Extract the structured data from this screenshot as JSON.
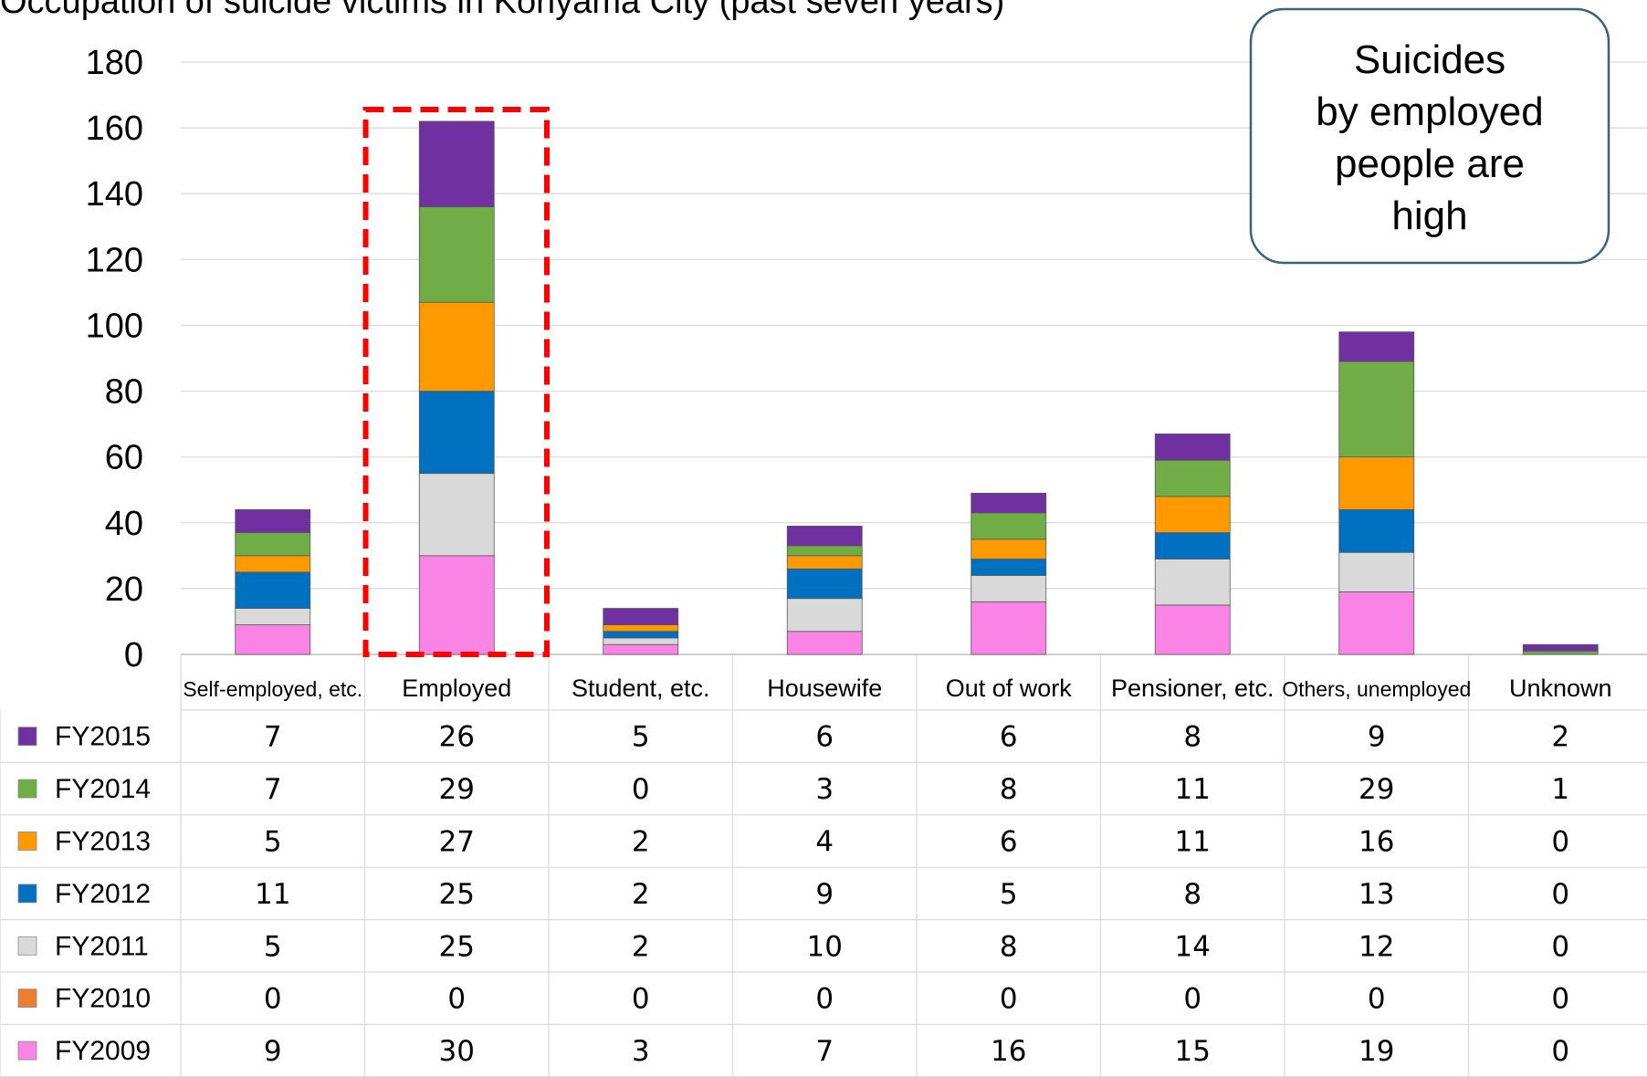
{
  "chart_data": {
    "type": "bar",
    "stacked": true,
    "title": "Occupation of suicide victims in Koriyama City (past seven years)",
    "ylim": [
      0,
      180
    ],
    "yticks": [
      0,
      20,
      40,
      60,
      80,
      100,
      120,
      140,
      160,
      180
    ],
    "grid": true,
    "legend_placement": "left of data table",
    "categories": [
      "Self-employed, etc.",
      "Employed",
      "Student, etc.",
      "Housewife",
      "Out of work",
      "Pensioner, etc.",
      "Others, unemployed",
      "Unknown"
    ],
    "series": [
      {
        "name": "FY2009",
        "color": "#f984e5",
        "values": [
          9,
          30,
          3,
          7,
          16,
          15,
          19,
          0
        ]
      },
      {
        "name": "FY2010",
        "color": "#ed7d31",
        "values": [
          0,
          0,
          0,
          0,
          0,
          0,
          0,
          0
        ]
      },
      {
        "name": "FY2011",
        "color": "#d9d9d9",
        "values": [
          5,
          25,
          2,
          10,
          8,
          14,
          12,
          0
        ]
      },
      {
        "name": "FY2012",
        "color": "#0070c0",
        "values": [
          11,
          25,
          2,
          9,
          5,
          8,
          13,
          0
        ]
      },
      {
        "name": "FY2013",
        "color": "#ff9900",
        "values": [
          5,
          27,
          2,
          4,
          6,
          11,
          16,
          0
        ]
      },
      {
        "name": "FY2014",
        "color": "#70ad47",
        "values": [
          7,
          29,
          0,
          3,
          8,
          11,
          29,
          1
        ]
      },
      {
        "name": "FY2015",
        "color": "#7030a0",
        "values": [
          7,
          26,
          5,
          6,
          6,
          8,
          9,
          2
        ]
      }
    ],
    "table_row_order": [
      "FY2015",
      "FY2014",
      "FY2013",
      "FY2012",
      "FY2011",
      "FY2010",
      "FY2009"
    ],
    "annotation": {
      "lines": [
        "Suicides",
        "by employed",
        "people are",
        "high"
      ]
    },
    "highlight_category": "Employed",
    "highlight_color": "#ff0000",
    "annotation_border_color": "#3b5f8a"
  }
}
